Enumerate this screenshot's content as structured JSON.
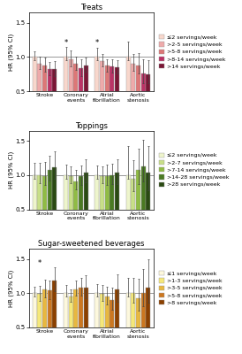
{
  "chart_data": [
    {
      "type": "bar",
      "title": "Treats",
      "categories": [
        "Stroke",
        "Coronary events",
        "Atrial fibrillation",
        "Aortic stenosis"
      ],
      "ylabel": "HR (95% CI)",
      "series": [
        {
          "name": "≤2 servings/week",
          "color": "#f8d7cc",
          "values": [
            1.0,
            1.0,
            1.0,
            1.0
          ],
          "err_low": [
            0.05,
            0.05,
            0.05,
            0.05
          ],
          "err_high": [
            0.08,
            0.14,
            0.13,
            0.22
          ]
        },
        {
          "name": ">2-5 servings/week",
          "color": "#eeaaaa",
          "values": [
            0.9,
            0.96,
            0.94,
            0.9
          ],
          "err_low": [
            0.08,
            0.1,
            0.08,
            0.1
          ],
          "err_high": [
            0.1,
            0.13,
            0.1,
            0.14
          ]
        },
        {
          "name": ">5-8 servings/week",
          "color": "#dd7777",
          "values": [
            0.88,
            0.9,
            0.87,
            0.88
          ],
          "err_low": [
            0.09,
            0.09,
            0.09,
            0.12
          ],
          "err_high": [
            0.11,
            0.11,
            0.1,
            0.17
          ]
        },
        {
          "name": ">8-14 servings/week",
          "color": "#bb3366",
          "values": [
            0.82,
            0.83,
            0.86,
            0.76
          ],
          "err_low": [
            0.09,
            0.11,
            0.09,
            0.14
          ],
          "err_high": [
            0.11,
            0.13,
            0.11,
            0.2
          ]
        },
        {
          "name": ">14 servings/week",
          "color": "#7a1535",
          "values": [
            0.82,
            0.88,
            0.85,
            0.75
          ],
          "err_low": [
            0.1,
            0.1,
            0.09,
            0.14
          ],
          "err_high": [
            0.12,
            0.11,
            0.1,
            0.2
          ]
        }
      ],
      "hline": 1.0,
      "annotations": [
        {
          "text": "*",
          "category": "Coronary events",
          "series": "≤2 servings/week",
          "y": 1.15
        },
        {
          "text": "*",
          "category": "Atrial fibrillation",
          "series": "≤2 servings/week",
          "y": 1.15
        }
      ],
      "ylim": [
        0.5,
        1.65
      ],
      "yticks": [
        {
          "value": 0.5,
          "label": "0.5"
        },
        {
          "value": 1.0,
          "label": "1.0"
        },
        {
          "value": 1.5,
          "label": "1.5"
        }
      ],
      "legend": "center left"
    },
    {
      "type": "bar",
      "title": "Toppings",
      "categories": [
        "Stroke",
        "Coronary events",
        "Atrial fibrillation",
        "Aortic stenosis"
      ],
      "ylabel": "HR (95% CI)",
      "series": [
        {
          "name": "≤2 servings/week",
          "color": "#eef5cc",
          "values": [
            1.0,
            1.0,
            1.0,
            1.0
          ],
          "err_low": [
            0.05,
            0.05,
            0.05,
            0.05
          ],
          "err_high": [
            0.18,
            0.15,
            0.14,
            0.42
          ]
        },
        {
          "name": ">2-7 servings/week",
          "color": "#c8df88",
          "values": [
            1.0,
            0.99,
            0.99,
            0.95
          ],
          "err_low": [
            0.12,
            0.11,
            0.11,
            0.18
          ],
          "err_high": [
            0.18,
            0.14,
            0.14,
            0.27
          ]
        },
        {
          "name": ">7-14 servings/week",
          "color": "#90bc44",
          "values": [
            0.99,
            0.91,
            0.98,
            1.07
          ],
          "err_low": [
            0.13,
            0.12,
            0.13,
            0.2
          ],
          "err_high": [
            0.2,
            0.16,
            0.17,
            0.32
          ]
        },
        {
          "name": ">14-28 servings/week",
          "color": "#4a7a22",
          "values": [
            1.07,
            0.98,
            1.0,
            1.13
          ],
          "err_low": [
            0.15,
            0.13,
            0.13,
            0.22
          ],
          "err_high": [
            0.21,
            0.16,
            0.16,
            0.38
          ]
        },
        {
          "name": ">28 servings/week",
          "color": "#2a4a12",
          "values": [
            1.12,
            1.04,
            1.03,
            1.03
          ],
          "err_low": [
            0.18,
            0.15,
            0.16,
            0.25
          ],
          "err_high": [
            0.22,
            0.19,
            0.2,
            0.4
          ]
        }
      ],
      "hline": 1.0,
      "annotations": [],
      "ylim": [
        0.5,
        1.65
      ],
      "yticks": [
        {
          "value": 0.5,
          "label": "0.5"
        },
        {
          "value": 1.0,
          "label": "1.0"
        },
        {
          "value": 1.5,
          "label": "1.5"
        }
      ],
      "legend": "center left"
    },
    {
      "type": "bar",
      "title": "Sugar-sweetened beverages",
      "categories": [
        "Stroke",
        "Coronary events",
        "Atrial fibrillation",
        "Aortic stenosis"
      ],
      "ylabel": "HR (95% CI)",
      "series": [
        {
          "name": "≤1 servings/week",
          "color": "#fdf8dd",
          "values": [
            1.0,
            1.0,
            1.0,
            1.0
          ],
          "err_low": [
            0.05,
            0.05,
            0.05,
            0.05
          ],
          "err_high": [
            0.1,
            0.12,
            0.13,
            0.22
          ]
        },
        {
          "name": ">1-3 servings/week",
          "color": "#f5e87a",
          "values": [
            0.99,
            0.95,
            0.99,
            1.0
          ],
          "err_low": [
            0.1,
            0.08,
            0.1,
            0.14
          ],
          "err_high": [
            0.12,
            0.1,
            0.13,
            0.22
          ]
        },
        {
          "name": ">3-5 servings/week",
          "color": "#e8b840",
          "values": [
            1.06,
            1.06,
            0.95,
            0.93
          ],
          "err_low": [
            0.12,
            0.1,
            0.12,
            0.18
          ],
          "err_high": [
            0.14,
            0.13,
            0.15,
            0.28
          ]
        },
        {
          "name": ">5-8 servings/week",
          "color": "#cc7720",
          "values": [
            1.04,
            1.08,
            0.9,
            1.0
          ],
          "err_low": [
            0.13,
            0.12,
            0.14,
            0.19
          ],
          "err_high": [
            0.15,
            0.14,
            0.18,
            0.35
          ]
        },
        {
          "name": ">8 servings/week",
          "color": "#8b4000",
          "values": [
            1.18,
            1.08,
            1.06,
            1.08
          ],
          "err_low": [
            0.15,
            0.15,
            0.18,
            0.22
          ],
          "err_high": [
            0.2,
            0.18,
            0.22,
            0.42
          ]
        }
      ],
      "hline": 1.0,
      "annotations": [
        {
          "text": "*",
          "category": "Stroke",
          "series": ">1-3 servings/week",
          "y": 1.38
        }
      ],
      "ylim": [
        0.5,
        1.65
      ],
      "yticks": [
        {
          "value": 0.5,
          "label": "0.5"
        },
        {
          "value": 1.0,
          "label": "1.0"
        },
        {
          "value": 1.5,
          "label": "1.5"
        }
      ],
      "legend": "center left"
    }
  ]
}
